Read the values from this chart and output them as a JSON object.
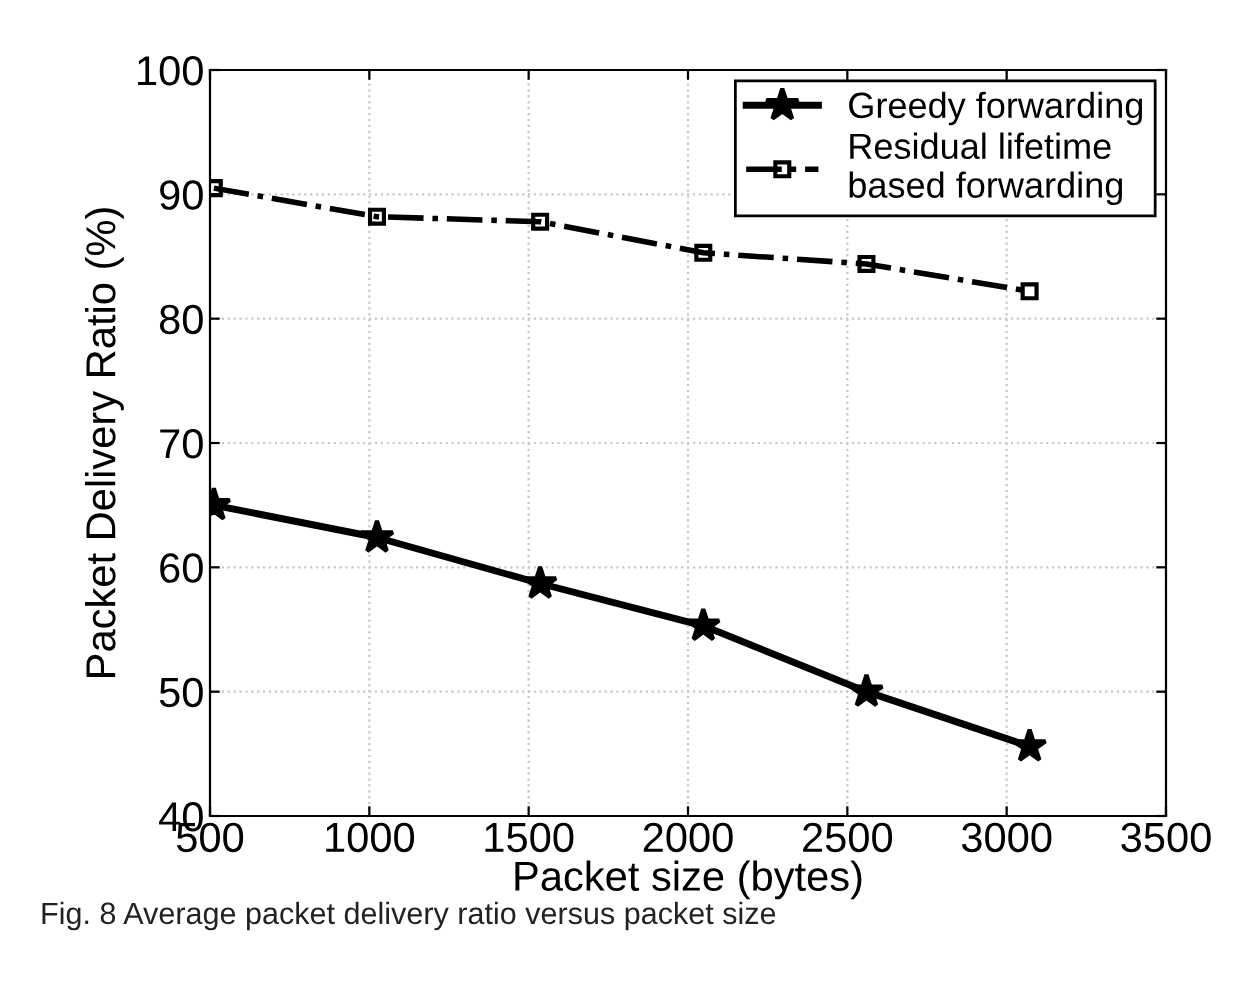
{
  "chart_data": {
    "type": "line",
    "xlabel": "Packet size (bytes)",
    "ylabel": "Packet Delivery Ratio (%)",
    "x": [
      512,
      1024,
      1536,
      2048,
      2560,
      3072
    ],
    "series": [
      {
        "name": "Greedy forwarding",
        "color": "#000000",
        "values": [
          65,
          62.4,
          58.7,
          55.3,
          50,
          45.6
        ],
        "marker": "star",
        "line_style": "solid"
      },
      {
        "name": "Residual lifetime\nbased forwarding",
        "color": "#000000",
        "values": [
          90.5,
          88.2,
          87.8,
          85.3,
          84.4,
          82.2
        ],
        "marker": "square",
        "line_style": "dashdot"
      }
    ],
    "xlim": [
      500,
      3500
    ],
    "xticks": [
      500,
      1000,
      1500,
      2000,
      2500,
      3000,
      3500
    ],
    "ylim": [
      40,
      100
    ],
    "yticks": [
      40,
      50,
      60,
      70,
      80,
      90,
      100
    ],
    "grid": true,
    "legend": "top right",
    "annotations": [
      "Fig. 8 Average packet delivery ratio versus packet size"
    ]
  }
}
